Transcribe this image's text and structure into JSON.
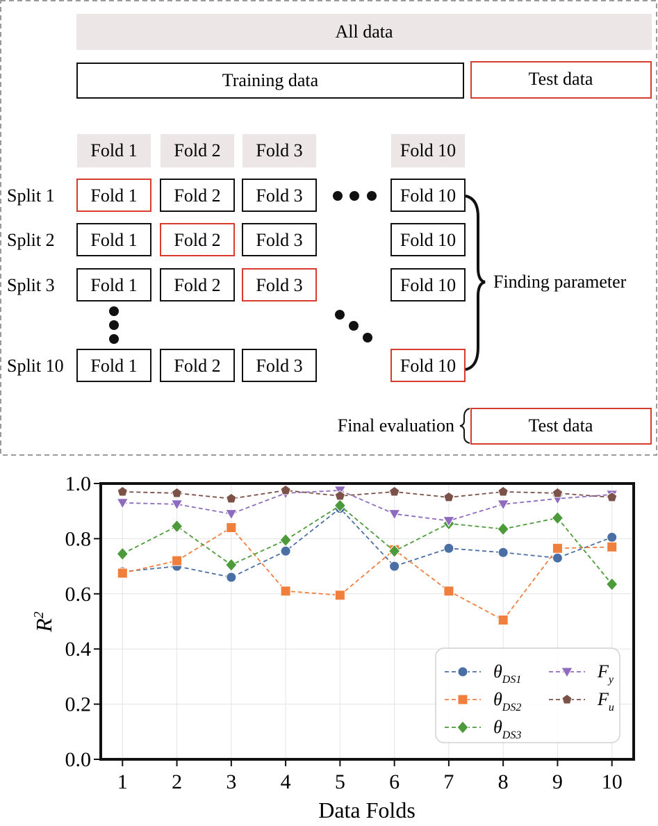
{
  "diagram": {
    "all_data": "All data",
    "training_data": "Training data",
    "test_data": "Test data",
    "fold_header": [
      "Fold 1",
      "Fold 2",
      "Fold 3",
      "Fold 10"
    ],
    "splits": [
      {
        "label": "Split 1",
        "folds": [
          "Fold 1",
          "Fold 2",
          "Fold 3",
          "Fold 10"
        ],
        "test_fold": 0
      },
      {
        "label": "Split 2",
        "folds": [
          "Fold 1",
          "Fold 2",
          "Fold 3",
          "Fold 10"
        ],
        "test_fold": 1
      },
      {
        "label": "Split 3",
        "folds": [
          "Fold 1",
          "Fold 2",
          "Fold 3",
          "Fold 10"
        ],
        "test_fold": 2
      },
      {
        "label": "Split 10",
        "folds": [
          "Fold 1",
          "Fold 2",
          "Fold 3",
          "Fold 10"
        ],
        "test_fold": 3
      }
    ],
    "finding_parameter": "Finding parameter",
    "final_evaluation": "Final evaluation",
    "final_test_data": "Test data",
    "colors": {
      "header_fill": "#ede6e6",
      "test_border": "#d83a2e",
      "dashed_border": "#9a9a9a"
    }
  },
  "chart_data": {
    "type": "line",
    "xlabel": "Data Folds",
    "ylabel": "R",
    "ylabel_superscript": "2",
    "x": [
      1,
      2,
      3,
      4,
      5,
      6,
      7,
      8,
      9,
      10
    ],
    "ylim": [
      0.0,
      1.0
    ],
    "yticks": [
      "0.0",
      "0.2",
      "0.4",
      "0.6",
      "0.8",
      "1.0"
    ],
    "xticks": [
      "1",
      "2",
      "3",
      "4",
      "5",
      "6",
      "7",
      "8",
      "9",
      "10"
    ],
    "grid": true,
    "legend_position": "lower-right",
    "series": [
      {
        "name": "θDS1",
        "name_main": "θ",
        "name_sub": "DS1",
        "color": "#4a6fa5",
        "marker": "circle",
        "values": [
          0.68,
          0.7,
          0.66,
          0.755,
          0.91,
          0.7,
          0.765,
          0.75,
          0.73,
          0.805
        ]
      },
      {
        "name": "θDS2",
        "name_main": "θ",
        "name_sub": "DS2",
        "color": "#f07e3c",
        "marker": "square",
        "values": [
          0.675,
          0.72,
          0.84,
          0.61,
          0.595,
          0.76,
          0.61,
          0.505,
          0.765,
          0.77
        ]
      },
      {
        "name": "θDS3",
        "name_main": "θ",
        "name_sub": "DS3",
        "color": "#4c9a3a",
        "marker": "diamond",
        "values": [
          0.745,
          0.845,
          0.705,
          0.795,
          0.92,
          0.755,
          0.855,
          0.835,
          0.875,
          0.635
        ]
      },
      {
        "name": "Fy",
        "name_main": "F",
        "name_sub": "y",
        "color": "#8e6bbf",
        "marker": "triangle-down",
        "values": [
          0.93,
          0.925,
          0.89,
          0.965,
          0.975,
          0.89,
          0.865,
          0.925,
          0.945,
          0.96
        ]
      },
      {
        "name": "Fu",
        "name_main": "F",
        "name_sub": "u",
        "color": "#7b5148",
        "marker": "pentagon",
        "values": [
          0.97,
          0.965,
          0.945,
          0.975,
          0.955,
          0.97,
          0.95,
          0.97,
          0.965,
          0.95
        ]
      }
    ]
  }
}
